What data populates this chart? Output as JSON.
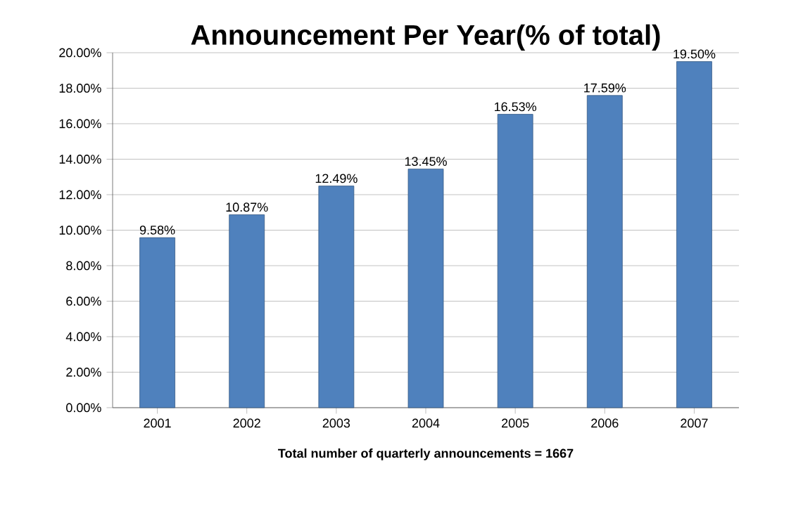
{
  "chart_data": {
    "type": "bar",
    "title": "Announcement Per Year(% of total)",
    "xlabel": "Total number of quarterly announcements = 1667",
    "categories": [
      "2001",
      "2002",
      "2003",
      "2004",
      "2005",
      "2006",
      "2007"
    ],
    "values": [
      9.58,
      10.87,
      12.49,
      13.45,
      16.53,
      17.59,
      19.5
    ],
    "value_labels": [
      "9.58%",
      "10.87%",
      "12.49%",
      "13.45%",
      "16.53%",
      "17.59%",
      "19.50%"
    ],
    "color": "#4f81bd",
    "ylim": [
      0,
      20
    ],
    "yticks": [
      {
        "value": 0,
        "label": "0.00%"
      },
      {
        "value": 2,
        "label": "2.00%"
      },
      {
        "value": 4,
        "label": "4.00%"
      },
      {
        "value": 6,
        "label": "6.00%"
      },
      {
        "value": 8,
        "label": "8.00%"
      },
      {
        "value": 10,
        "label": "10.00%"
      },
      {
        "value": 12,
        "label": "12.00%"
      },
      {
        "value": 14,
        "label": "14.00%"
      },
      {
        "value": 16,
        "label": "16.00%"
      },
      {
        "value": 18,
        "label": "18.00%"
      },
      {
        "value": 20,
        "label": "20.00%"
      }
    ],
    "grid": "y"
  }
}
